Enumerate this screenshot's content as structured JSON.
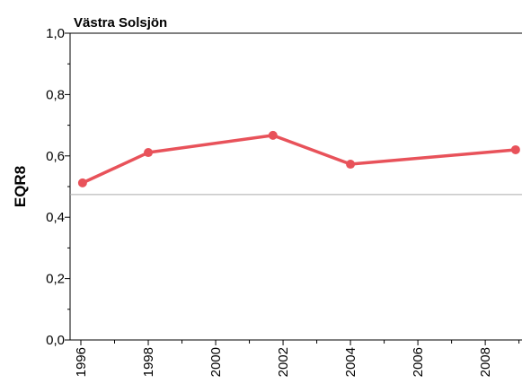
{
  "chart_data": {
    "type": "line",
    "title": "Västra Solsjön",
    "ylabel": "EQR8",
    "series": [
      {
        "name": "EQR8",
        "color": "#e8525a",
        "x": [
          1996.05,
          1998.0,
          2001.7,
          2004.0,
          2008.9
        ],
        "values": [
          0.512,
          0.611,
          0.667,
          0.573,
          0.62
        ]
      }
    ],
    "reference_line": 0.474,
    "reference_color": "#aaaaaa",
    "xlim": [
      1995.68,
      2009.09
    ],
    "xticks": [
      1996,
      1998,
      2000,
      2002,
      2004,
      2006,
      2008
    ],
    "xminor_ticks": [
      1997,
      1999,
      2001,
      2003,
      2005,
      2007,
      2009
    ],
    "ylim": [
      0,
      1
    ],
    "yticks": [
      {
        "value": 0,
        "label": "0,0"
      },
      {
        "value": 0.2,
        "label": "0,2"
      },
      {
        "value": 0.4,
        "label": "0,4"
      },
      {
        "value": 0.6,
        "label": "0,6"
      },
      {
        "value": 0.8,
        "label": "0,8"
      },
      {
        "value": 1,
        "label": "1,0"
      }
    ],
    "yminor_ticks": [
      0.1,
      0.3,
      0.5,
      0.7,
      0.9
    ]
  }
}
